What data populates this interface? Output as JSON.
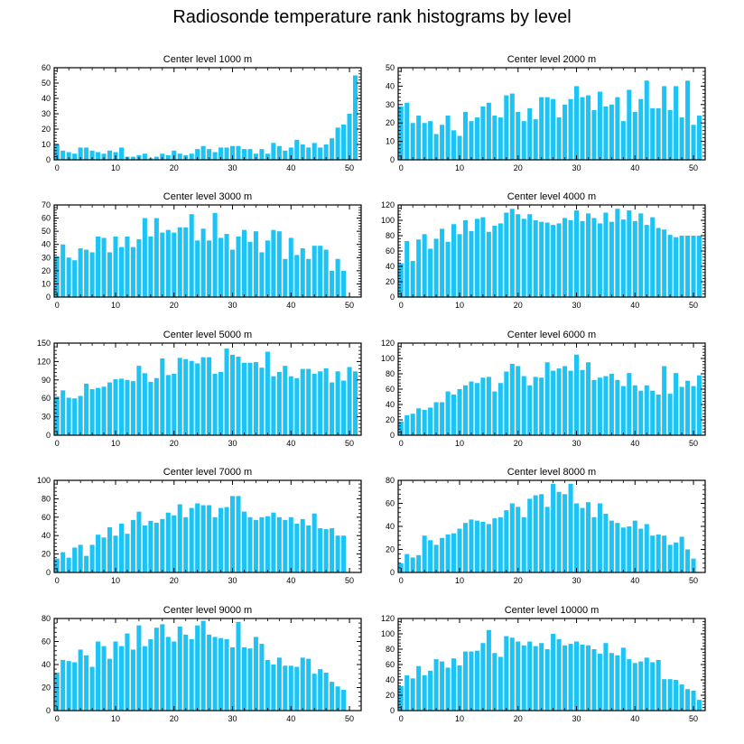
{
  "title": "Radiosonde temperature rank histograms by level",
  "bar_color": "#1EC3F5",
  "chart_data": [
    {
      "type": "bar",
      "title": "Center level 1000 m",
      "ylim": [
        0,
        60
      ],
      "yticks": [
        0,
        10,
        20,
        30,
        40,
        50,
        60
      ],
      "xticks": [
        0,
        10,
        20,
        30,
        40,
        50
      ],
      "values": [
        10,
        6,
        5,
        4,
        8,
        8,
        6,
        5,
        4,
        6,
        5,
        8,
        2,
        2,
        3,
        4,
        1,
        2,
        4,
        3,
        6,
        4,
        3,
        4,
        7,
        9,
        7,
        5,
        8,
        8,
        9,
        9,
        7,
        7,
        4,
        7,
        4,
        11,
        9,
        6,
        8,
        13,
        10,
        8,
        11,
        8,
        10,
        14,
        21,
        23,
        30,
        55
      ]
    },
    {
      "type": "bar",
      "title": "Center level 2000 m",
      "ylim": [
        0,
        50
      ],
      "yticks": [
        0,
        10,
        20,
        30,
        40,
        50
      ],
      "xticks": [
        0,
        10,
        20,
        30,
        40,
        50
      ],
      "values": [
        29,
        31,
        20,
        24,
        20,
        21,
        14,
        19,
        24,
        16,
        13,
        26,
        21,
        23,
        29,
        31,
        24,
        23,
        35,
        36,
        26,
        21,
        28,
        22,
        34,
        34,
        33,
        23,
        30,
        33,
        40,
        34,
        35,
        27,
        37,
        29,
        30,
        34,
        21,
        38,
        26,
        33,
        43,
        28,
        28,
        40,
        27,
        40,
        23,
        43,
        19,
        24
      ]
    },
    {
      "type": "bar",
      "title": "Center level 3000 m",
      "ylim": [
        0,
        70
      ],
      "yticks": [
        0,
        10,
        20,
        30,
        40,
        50,
        60,
        70
      ],
      "xticks": [
        0,
        10,
        20,
        30,
        40,
        50
      ],
      "values": [
        31,
        40,
        30,
        28,
        37,
        36,
        34,
        46,
        45,
        34,
        46,
        38,
        46,
        38,
        44,
        60,
        46,
        60,
        49,
        51,
        49,
        53,
        53,
        63,
        43,
        52,
        43,
        64,
        45,
        48,
        36,
        46,
        51,
        42,
        50,
        34,
        43,
        51,
        50,
        29,
        45,
        32,
        37,
        29,
        39,
        39,
        36,
        20,
        29,
        20
      ]
    },
    {
      "type": "bar",
      "title": "Center level 4000 m",
      "ylim": [
        0,
        120
      ],
      "yticks": [
        0,
        20,
        40,
        60,
        80,
        100,
        120
      ],
      "xticks": [
        0,
        10,
        20,
        30,
        40,
        50
      ],
      "values": [
        44,
        73,
        47,
        75,
        82,
        63,
        76,
        89,
        72,
        95,
        82,
        100,
        86,
        102,
        104,
        85,
        93,
        96,
        110,
        115,
        108,
        102,
        108,
        100,
        98,
        97,
        94,
        96,
        103,
        100,
        113,
        99,
        109,
        103,
        96,
        110,
        98,
        115,
        101,
        113,
        99,
        109,
        94,
        104,
        90,
        88,
        81,
        78,
        80,
        80,
        80,
        80
      ]
    },
    {
      "type": "bar",
      "title": "Center level 5000 m",
      "ylim": [
        0,
        150
      ],
      "yticks": [
        0,
        30,
        60,
        90,
        120,
        150
      ],
      "xticks": [
        0,
        10,
        20,
        30,
        40,
        50
      ],
      "values": [
        63,
        73,
        61,
        60,
        64,
        84,
        75,
        77,
        79,
        86,
        91,
        92,
        90,
        88,
        113,
        101,
        87,
        93,
        125,
        98,
        100,
        126,
        124,
        121,
        117,
        127,
        127,
        100,
        103,
        141,
        131,
        128,
        118,
        118,
        119,
        110,
        136,
        96,
        103,
        113,
        96,
        93,
        108,
        108,
        100,
        104,
        109,
        86,
        104,
        89,
        111,
        104
      ]
    },
    {
      "type": "bar",
      "title": "Center level 6000 m",
      "ylim": [
        0,
        120
      ],
      "yticks": [
        0,
        20,
        40,
        60,
        80,
        100,
        120
      ],
      "xticks": [
        0,
        10,
        20,
        30,
        40,
        50
      ],
      "values": [
        18,
        26,
        28,
        35,
        33,
        36,
        43,
        43,
        57,
        53,
        60,
        65,
        70,
        68,
        75,
        76,
        57,
        68,
        83,
        93,
        90,
        77,
        65,
        76,
        75,
        95,
        84,
        87,
        90,
        84,
        105,
        85,
        95,
        72,
        75,
        77,
        80,
        72,
        64,
        81,
        65,
        58,
        65,
        58,
        53,
        90,
        54,
        81,
        63,
        71,
        64,
        78
      ]
    },
    {
      "type": "bar",
      "title": "Center level 7000 m",
      "ylim": [
        0,
        100
      ],
      "yticks": [
        0,
        20,
        40,
        60,
        80,
        100
      ],
      "xticks": [
        0,
        10,
        20,
        30,
        40,
        50
      ],
      "values": [
        15,
        22,
        16,
        27,
        30,
        18,
        30,
        41,
        38,
        49,
        40,
        53,
        42,
        57,
        66,
        51,
        56,
        54,
        58,
        65,
        62,
        74,
        60,
        70,
        75,
        73,
        73,
        60,
        70,
        71,
        83,
        83,
        66,
        60,
        57,
        60,
        61,
        65,
        60,
        57,
        60,
        53,
        58,
        51,
        64,
        48,
        47,
        48,
        40,
        40
      ]
    },
    {
      "type": "bar",
      "title": "Center level 8000 m",
      "ylim": [
        0,
        80
      ],
      "yticks": [
        0,
        20,
        40,
        60,
        80
      ],
      "xticks": [
        0,
        10,
        20,
        30,
        40,
        50
      ],
      "values": [
        8,
        16,
        13,
        15,
        32,
        28,
        24,
        30,
        33,
        34,
        38,
        43,
        46,
        45,
        44,
        42,
        47,
        48,
        54,
        60,
        57,
        48,
        64,
        67,
        68,
        57,
        77,
        70,
        68,
        77,
        60,
        56,
        61,
        48,
        60,
        51,
        45,
        43,
        39,
        40,
        45,
        38,
        42,
        32,
        33,
        32,
        24,
        26,
        31,
        20,
        12
      ]
    },
    {
      "type": "bar",
      "title": "Center level 9000 m",
      "ylim": [
        0,
        80
      ],
      "yticks": [
        0,
        20,
        40,
        60,
        80
      ],
      "xticks": [
        0,
        10,
        20,
        30,
        40,
        50
      ],
      "values": [
        33,
        44,
        43,
        42,
        53,
        48,
        38,
        60,
        56,
        45,
        60,
        56,
        67,
        53,
        74,
        56,
        62,
        72,
        75,
        64,
        60,
        73,
        66,
        62,
        74,
        78,
        66,
        64,
        63,
        62,
        55,
        77,
        55,
        54,
        64,
        58,
        44,
        40,
        46,
        39,
        39,
        38,
        46,
        45,
        32,
        36,
        33,
        25,
        21,
        18
      ]
    },
    {
      "type": "bar",
      "title": "Center level 10000 m",
      "ylim": [
        0,
        120
      ],
      "yticks": [
        0,
        20,
        40,
        60,
        80,
        100,
        120
      ],
      "xticks": [
        0,
        10,
        20,
        30,
        40,
        50
      ],
      "values": [
        32,
        46,
        42,
        58,
        46,
        52,
        67,
        64,
        56,
        68,
        59,
        77,
        77,
        78,
        88,
        105,
        75,
        70,
        97,
        95,
        90,
        85,
        90,
        84,
        88,
        80,
        100,
        93,
        85,
        87,
        90,
        86,
        85,
        80,
        74,
        88,
        75,
        72,
        82,
        67,
        62,
        64,
        69,
        63,
        66,
        41,
        41,
        40,
        34,
        28,
        26,
        14
      ]
    }
  ]
}
